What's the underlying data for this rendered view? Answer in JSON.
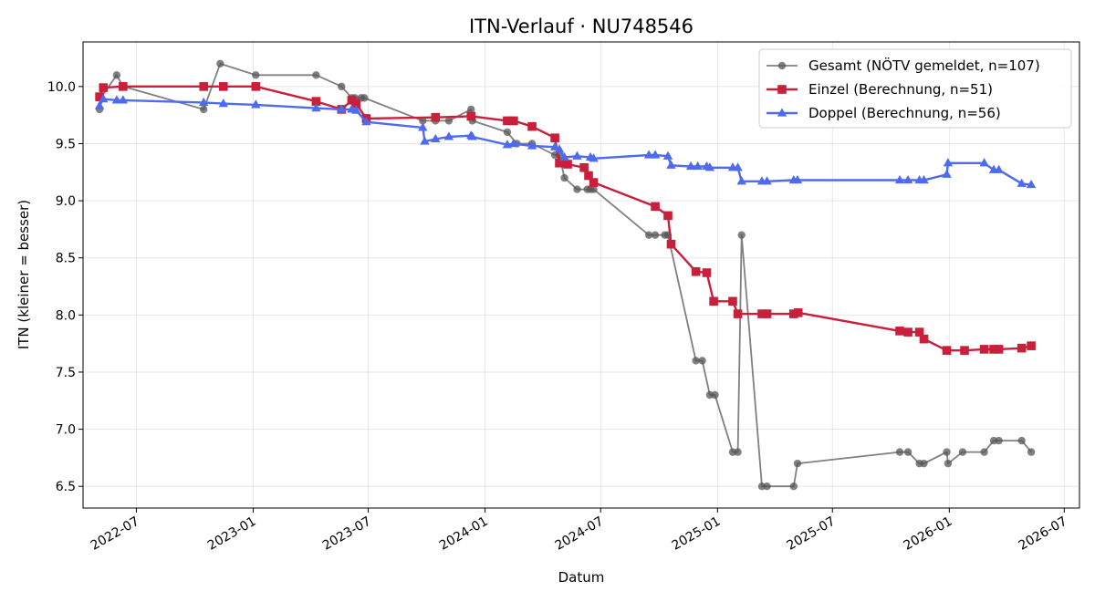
{
  "chart_data": {
    "type": "line",
    "title": "ITN-Verlauf · NU748546",
    "xlabel": "Datum",
    "ylabel": "ITN  (kleiner = besser)",
    "xlim": [
      "2022-04-08",
      "2026-07-25"
    ],
    "ylim": [
      6.31,
      10.39
    ],
    "x_ticks": [
      {
        "date": "2022-07-01",
        "label": "2022-07"
      },
      {
        "date": "2023-01-01",
        "label": "2023-01"
      },
      {
        "date": "2023-07-01",
        "label": "2023-07"
      },
      {
        "date": "2024-01-01",
        "label": "2024-01"
      },
      {
        "date": "2024-07-01",
        "label": "2024-07"
      },
      {
        "date": "2025-01-01",
        "label": "2025-01"
      },
      {
        "date": "2025-07-01",
        "label": "2025-07"
      },
      {
        "date": "2026-01-01",
        "label": "2026-01"
      },
      {
        "date": "2026-07-01",
        "label": "2026-07"
      }
    ],
    "y_ticks": [
      {
        "value": 6.5,
        "label": "6.5"
      },
      {
        "value": 7.0,
        "label": "7.0"
      },
      {
        "value": 7.5,
        "label": "7.5"
      },
      {
        "value": 8.0,
        "label": "8.0"
      },
      {
        "value": 8.5,
        "label": "8.5"
      },
      {
        "value": 9.0,
        "label": "9.0"
      },
      {
        "value": 9.5,
        "label": "9.5"
      },
      {
        "value": 10.0,
        "label": "10.0"
      }
    ],
    "grid": true,
    "legend_position": "top-right",
    "series": [
      {
        "name": "Gesamt (NÖTV gemeldet, n=107)",
        "color": "#555555",
        "marker": "circle",
        "points": [
          {
            "x": "2022-05-04",
            "y": 9.8
          },
          {
            "x": "2022-05-06",
            "y": 9.9
          },
          {
            "x": "2022-05-31",
            "y": 10.1
          },
          {
            "x": "2022-06-10",
            "y": 10.0
          },
          {
            "x": "2022-10-15",
            "y": 9.8
          },
          {
            "x": "2022-11-10",
            "y": 10.2
          },
          {
            "x": "2023-01-05",
            "y": 10.1
          },
          {
            "x": "2023-04-10",
            "y": 10.1
          },
          {
            "x": "2023-05-20",
            "y": 10.0
          },
          {
            "x": "2023-06-05",
            "y": 9.9
          },
          {
            "x": "2023-06-10",
            "y": 9.9
          },
          {
            "x": "2023-06-20",
            "y": 9.9
          },
          {
            "x": "2023-06-25",
            "y": 9.9
          },
          {
            "x": "2023-09-25",
            "y": 9.7
          },
          {
            "x": "2023-10-15",
            "y": 9.7
          },
          {
            "x": "2023-11-05",
            "y": 9.7
          },
          {
            "x": "2023-12-10",
            "y": 9.8
          },
          {
            "x": "2023-12-12",
            "y": 9.7
          },
          {
            "x": "2024-02-05",
            "y": 9.6
          },
          {
            "x": "2024-02-20",
            "y": 9.5
          },
          {
            "x": "2024-03-15",
            "y": 9.5
          },
          {
            "x": "2024-04-20",
            "y": 9.4
          },
          {
            "x": "2024-04-27",
            "y": 9.4
          },
          {
            "x": "2024-05-05",
            "y": 9.2
          },
          {
            "x": "2024-05-25",
            "y": 9.1
          },
          {
            "x": "2024-06-10",
            "y": 9.1
          },
          {
            "x": "2024-06-15",
            "y": 9.1
          },
          {
            "x": "2024-06-20",
            "y": 9.1
          },
          {
            "x": "2024-09-15",
            "y": 8.7
          },
          {
            "x": "2024-09-25",
            "y": 8.7
          },
          {
            "x": "2024-10-10",
            "y": 8.7
          },
          {
            "x": "2024-10-15",
            "y": 8.7
          },
          {
            "x": "2024-11-28",
            "y": 7.6
          },
          {
            "x": "2024-12-08",
            "y": 7.6
          },
          {
            "x": "2024-12-20",
            "y": 7.3
          },
          {
            "x": "2024-12-28",
            "y": 7.3
          },
          {
            "x": "2025-01-25",
            "y": 6.8
          },
          {
            "x": "2025-02-02",
            "y": 6.8
          },
          {
            "x": "2025-02-08",
            "y": 8.7
          },
          {
            "x": "2025-03-12",
            "y": 6.5
          },
          {
            "x": "2025-03-20",
            "y": 6.5
          },
          {
            "x": "2025-05-01",
            "y": 6.5
          },
          {
            "x": "2025-05-07",
            "y": 6.7
          },
          {
            "x": "2025-10-15",
            "y": 6.8
          },
          {
            "x": "2025-10-28",
            "y": 6.8
          },
          {
            "x": "2025-11-15",
            "y": 6.7
          },
          {
            "x": "2025-11-22",
            "y": 6.7
          },
          {
            "x": "2025-12-28",
            "y": 6.8
          },
          {
            "x": "2025-12-30",
            "y": 6.7
          },
          {
            "x": "2026-01-22",
            "y": 6.8
          },
          {
            "x": "2026-02-25",
            "y": 6.8
          },
          {
            "x": "2026-03-12",
            "y": 6.9
          },
          {
            "x": "2026-03-20",
            "y": 6.9
          },
          {
            "x": "2026-04-25",
            "y": 6.9
          },
          {
            "x": "2026-05-10",
            "y": 6.8
          }
        ]
      },
      {
        "name": "Einzel (Berechnung, n=51)",
        "color": "#c8203a",
        "marker": "square",
        "points": [
          {
            "x": "2022-05-04",
            "y": 9.91
          },
          {
            "x": "2022-05-10",
            "y": 9.99
          },
          {
            "x": "2022-06-10",
            "y": 10.0
          },
          {
            "x": "2022-10-15",
            "y": 10.0
          },
          {
            "x": "2022-11-15",
            "y": 10.0
          },
          {
            "x": "2023-01-05",
            "y": 10.0
          },
          {
            "x": "2023-04-10",
            "y": 9.87
          },
          {
            "x": "2023-05-20",
            "y": 9.8
          },
          {
            "x": "2023-06-05",
            "y": 9.88
          },
          {
            "x": "2023-06-12",
            "y": 9.85
          },
          {
            "x": "2023-06-28",
            "y": 9.72
          },
          {
            "x": "2023-10-15",
            "y": 9.73
          },
          {
            "x": "2023-12-10",
            "y": 9.74
          },
          {
            "x": "2024-02-05",
            "y": 9.7
          },
          {
            "x": "2024-02-15",
            "y": 9.7
          },
          {
            "x": "2024-03-15",
            "y": 9.65
          },
          {
            "x": "2024-04-20",
            "y": 9.55
          },
          {
            "x": "2024-04-27",
            "y": 9.33
          },
          {
            "x": "2024-05-10",
            "y": 9.32
          },
          {
            "x": "2024-06-05",
            "y": 9.29
          },
          {
            "x": "2024-06-12",
            "y": 9.22
          },
          {
            "x": "2024-06-20",
            "y": 9.16
          },
          {
            "x": "2024-09-25",
            "y": 8.95
          },
          {
            "x": "2024-10-15",
            "y": 8.87
          },
          {
            "x": "2024-10-20",
            "y": 8.62
          },
          {
            "x": "2024-11-28",
            "y": 8.38
          },
          {
            "x": "2024-12-15",
            "y": 8.37
          },
          {
            "x": "2024-12-26",
            "y": 8.12
          },
          {
            "x": "2025-01-25",
            "y": 8.12
          },
          {
            "x": "2025-02-02",
            "y": 8.01
          },
          {
            "x": "2025-03-12",
            "y": 8.01
          },
          {
            "x": "2025-03-20",
            "y": 8.01
          },
          {
            "x": "2025-05-01",
            "y": 8.01
          },
          {
            "x": "2025-05-08",
            "y": 8.02
          },
          {
            "x": "2025-10-15",
            "y": 7.86
          },
          {
            "x": "2025-10-28",
            "y": 7.85
          },
          {
            "x": "2025-11-15",
            "y": 7.85
          },
          {
            "x": "2025-11-22",
            "y": 7.79
          },
          {
            "x": "2025-12-28",
            "y": 7.69
          },
          {
            "x": "2026-01-25",
            "y": 7.69
          },
          {
            "x": "2026-02-25",
            "y": 7.7
          },
          {
            "x": "2026-03-12",
            "y": 7.7
          },
          {
            "x": "2026-03-20",
            "y": 7.7
          },
          {
            "x": "2026-04-25",
            "y": 7.71
          },
          {
            "x": "2026-05-10",
            "y": 7.73
          }
        ]
      },
      {
        "name": "Doppel (Berechnung, n=56)",
        "color": "#4f6bed",
        "marker": "triangle",
        "points": [
          {
            "x": "2022-05-04",
            "y": 9.83
          },
          {
            "x": "2022-05-10",
            "y": 9.89
          },
          {
            "x": "2022-05-31",
            "y": 9.88
          },
          {
            "x": "2022-06-10",
            "y": 9.88
          },
          {
            "x": "2022-10-15",
            "y": 9.86
          },
          {
            "x": "2022-11-15",
            "y": 9.85
          },
          {
            "x": "2023-01-05",
            "y": 9.84
          },
          {
            "x": "2023-04-10",
            "y": 9.81
          },
          {
            "x": "2023-05-20",
            "y": 9.8
          },
          {
            "x": "2023-06-05",
            "y": 9.8
          },
          {
            "x": "2023-06-12",
            "y": 9.79
          },
          {
            "x": "2023-06-28",
            "y": 9.69
          },
          {
            "x": "2023-09-25",
            "y": 9.64
          },
          {
            "x": "2023-09-28",
            "y": 9.52
          },
          {
            "x": "2023-10-15",
            "y": 9.54
          },
          {
            "x": "2023-11-05",
            "y": 9.56
          },
          {
            "x": "2023-12-10",
            "y": 9.57
          },
          {
            "x": "2023-12-12",
            "y": 9.56
          },
          {
            "x": "2024-02-05",
            "y": 9.49
          },
          {
            "x": "2024-02-15",
            "y": 9.5
          },
          {
            "x": "2024-03-15",
            "y": 9.48
          },
          {
            "x": "2024-04-20",
            "y": 9.47
          },
          {
            "x": "2024-04-27",
            "y": 9.45
          },
          {
            "x": "2024-05-05",
            "y": 9.38
          },
          {
            "x": "2024-05-25",
            "y": 9.39
          },
          {
            "x": "2024-06-15",
            "y": 9.38
          },
          {
            "x": "2024-06-20",
            "y": 9.37
          },
          {
            "x": "2024-09-15",
            "y": 9.4
          },
          {
            "x": "2024-09-25",
            "y": 9.4
          },
          {
            "x": "2024-10-15",
            "y": 9.39
          },
          {
            "x": "2024-10-20",
            "y": 9.31
          },
          {
            "x": "2024-11-20",
            "y": 9.3
          },
          {
            "x": "2024-12-01",
            "y": 9.3
          },
          {
            "x": "2024-12-15",
            "y": 9.3
          },
          {
            "x": "2024-12-20",
            "y": 9.29
          },
          {
            "x": "2025-01-25",
            "y": 9.29
          },
          {
            "x": "2025-02-02",
            "y": 9.29
          },
          {
            "x": "2025-02-08",
            "y": 9.17
          },
          {
            "x": "2025-03-12",
            "y": 9.17
          },
          {
            "x": "2025-03-20",
            "y": 9.17
          },
          {
            "x": "2025-05-01",
            "y": 9.18
          },
          {
            "x": "2025-05-07",
            "y": 9.18
          },
          {
            "x": "2025-10-15",
            "y": 9.18
          },
          {
            "x": "2025-10-28",
            "y": 9.18
          },
          {
            "x": "2025-11-15",
            "y": 9.18
          },
          {
            "x": "2025-11-22",
            "y": 9.18
          },
          {
            "x": "2025-12-28",
            "y": 9.23
          },
          {
            "x": "2025-12-30",
            "y": 9.33
          },
          {
            "x": "2026-02-25",
            "y": 9.33
          },
          {
            "x": "2026-03-12",
            "y": 9.27
          },
          {
            "x": "2026-03-20",
            "y": 9.27
          },
          {
            "x": "2026-04-25",
            "y": 9.15
          },
          {
            "x": "2026-05-10",
            "y": 9.14
          }
        ]
      }
    ]
  }
}
